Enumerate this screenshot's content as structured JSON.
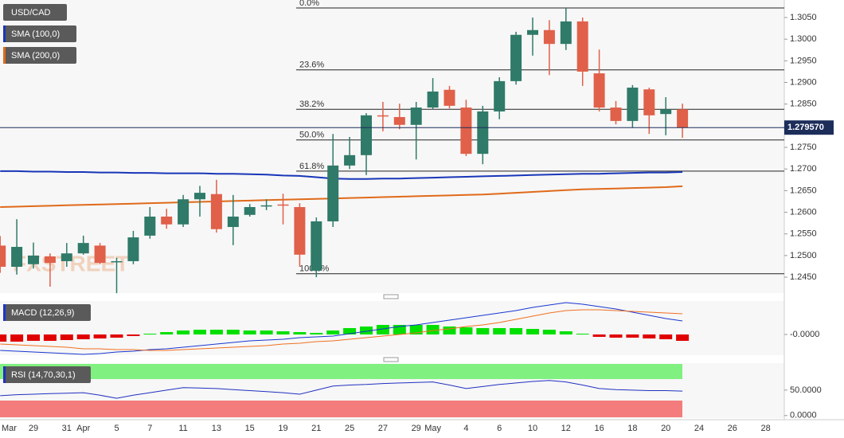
{
  "chart_data": [
    {
      "type": "candlestick",
      "title": "USD/CAD",
      "watermark": "FXSTREET",
      "categories": [
        "Mar",
        null,
        "29",
        null,
        "31",
        "Apr",
        null,
        "5",
        null,
        "7",
        null,
        "11",
        null,
        "13",
        null,
        "15",
        null,
        "19",
        null,
        "21",
        null,
        "25",
        null,
        "27",
        null,
        "29",
        "May",
        null,
        "4",
        null,
        "6",
        null,
        "10",
        null,
        "12",
        null,
        "16",
        null,
        "18",
        null,
        "20",
        null,
        "24",
        null,
        "26",
        null,
        "28"
      ],
      "candles": {
        "up_color": "#2f7a68",
        "down_color": "#e0604a",
        "open": [
          1.2523,
          1.2474,
          1.248,
          1.2498,
          1.2487,
          1.2505,
          1.2523,
          1.2486,
          1.2487,
          1.2546,
          1.259,
          1.2572,
          1.263,
          1.2642,
          1.2566,
          1.2594,
          1.2614,
          1.2618,
          1.2612,
          1.2465,
          1.2579,
          1.2708,
          1.2732,
          1.2824,
          1.282,
          1.2802,
          1.2842,
          1.2883,
          1.2842,
          1.2735,
          1.2833,
          1.2903,
          1.301,
          1.3021,
          1.2989,
          1.3041,
          1.2921,
          1.2842,
          1.2811,
          1.2884,
          1.2827,
          1.2838,
          null,
          null,
          null,
          null,
          null
        ],
        "high": [
          1.2545,
          1.2584,
          1.253,
          1.2505,
          1.2529,
          1.2546,
          1.2529,
          1.2495,
          1.2557,
          1.2612,
          1.2608,
          1.264,
          1.2661,
          1.2675,
          1.264,
          1.2619,
          1.263,
          1.2643,
          1.2621,
          1.2588,
          1.2781,
          1.2774,
          1.2829,
          1.2855,
          1.2851,
          1.2855,
          1.291,
          1.2892,
          1.286,
          1.2846,
          1.2912,
          1.3017,
          1.305,
          1.3044,
          1.3072,
          1.305,
          1.2976,
          1.2857,
          1.2894,
          1.2888,
          1.2866,
          1.2851,
          null,
          null,
          null,
          null,
          null
        ],
        "low": [
          1.246,
          1.2456,
          1.247,
          1.2428,
          1.2474,
          1.2502,
          1.248,
          1.2413,
          1.248,
          1.2539,
          1.2562,
          1.2566,
          1.259,
          1.2553,
          1.2524,
          1.259,
          1.2605,
          1.2572,
          1.2474,
          1.245,
          1.2566,
          1.27,
          1.2686,
          1.2787,
          1.2792,
          1.2722,
          1.2838,
          1.284,
          1.273,
          1.2711,
          1.2815,
          1.2895,
          1.2962,
          1.2917,
          1.2975,
          1.2892,
          1.2833,
          1.2803,
          1.2796,
          1.2781,
          1.2778,
          1.2772,
          null,
          null,
          null,
          null,
          null
        ],
        "close": [
          1.2474,
          1.252,
          1.25,
          1.2483,
          1.2505,
          1.2529,
          1.2483,
          1.2487,
          1.2542,
          1.259,
          1.2572,
          1.263,
          1.2645,
          1.2561,
          1.259,
          1.2612,
          1.2616,
          1.2616,
          1.2502,
          1.2579,
          1.2708,
          1.2732,
          1.2824,
          1.2822,
          1.2802,
          1.2842,
          1.2879,
          1.2846,
          1.2735,
          1.2833,
          1.2903,
          1.301,
          1.3021,
          1.2989,
          1.3041,
          1.2925,
          1.2842,
          1.2811,
          1.2888,
          1.2824,
          1.2838,
          1.27957,
          null,
          null,
          null,
          null,
          null
        ]
      },
      "series": [
        {
          "name": "SMA (100,0)",
          "color": "#1836b8",
          "values": [
            1.2695,
            1.2695,
            1.2694,
            1.2694,
            1.2693,
            1.2693,
            1.2692,
            1.2692,
            1.2691,
            1.2691,
            1.269,
            1.269,
            1.269,
            1.2689,
            1.2689,
            1.2688,
            1.2687,
            1.2685,
            1.2684,
            1.2681,
            1.2678,
            1.2677,
            1.2677,
            1.2678,
            1.2678,
            1.2679,
            1.268,
            1.2681,
            1.2682,
            1.2683,
            1.2684,
            1.2685,
            1.2686,
            1.2687,
            1.2688,
            1.2689,
            1.2689,
            1.269,
            1.2691,
            1.2692,
            1.2692,
            1.2693,
            null,
            null,
            null,
            null,
            null
          ]
        },
        {
          "name": "SMA (200,0)",
          "color": "#e06a1a",
          "values": [
            1.2612,
            1.2613,
            1.2614,
            1.2615,
            1.2616,
            1.2617,
            1.2618,
            1.2619,
            1.262,
            1.2621,
            1.2622,
            1.2623,
            1.2624,
            1.2625,
            1.2626,
            1.2627,
            1.2628,
            1.2629,
            1.263,
            1.2631,
            1.2632,
            1.2633,
            1.2634,
            1.2635,
            1.2636,
            1.2637,
            1.2638,
            1.2639,
            1.264,
            1.2641,
            1.2643,
            1.2645,
            1.2647,
            1.2649,
            1.2651,
            1.2653,
            1.2654,
            1.2655,
            1.2656,
            1.2657,
            1.2658,
            1.266,
            null,
            null,
            null,
            null,
            null
          ]
        }
      ],
      "levels": [
        {
          "label": "0.0%",
          "value": 1.3072
        },
        {
          "label": "23.6%",
          "value": 1.2929
        },
        {
          "label": "38.2%",
          "value": 1.2838
        },
        {
          "label": "50.0%",
          "value": 1.2767
        },
        {
          "label": "61.8%",
          "value": 1.2695
        },
        {
          "label": "100.0%",
          "value": 1.2458
        }
      ],
      "last_price": {
        "value": 1.27957,
        "label": "1.279570"
      },
      "ylim": [
        1.24133,
        1.30905
      ],
      "yticks": [
        {
          "value": 1.245,
          "label": "1.2450"
        },
        {
          "value": 1.25,
          "label": "1.2500"
        },
        {
          "value": 1.255,
          "label": "1.2550"
        },
        {
          "value": 1.26,
          "label": "1.2600"
        },
        {
          "value": 1.265,
          "label": "1.2650"
        },
        {
          "value": 1.27,
          "label": "1.2700"
        },
        {
          "value": 1.275,
          "label": "1.2750"
        },
        {
          "value": 1.28,
          "label": "1.2800"
        },
        {
          "value": 1.285,
          "label": "1.2850"
        },
        {
          "value": 1.29,
          "label": "1.2900"
        },
        {
          "value": 1.295,
          "label": "1.2950"
        },
        {
          "value": 1.3,
          "label": "1.3000"
        },
        {
          "value": 1.305,
          "label": "1.3050"
        }
      ]
    },
    {
      "type": "combo",
      "title": "MACD (12,26,9)",
      "series": [
        {
          "type": "bar",
          "up_color": "#00e000",
          "down_color": "#e00000",
          "values": [
            -0.0009,
            -0.0009,
            -0.0008,
            -0.0008,
            -0.0007,
            -0.0006,
            -0.0005,
            -0.0004,
            -0.0002,
            0.0001,
            0.0003,
            0.0005,
            0.0006,
            0.0006,
            0.0006,
            0.0005,
            0.0005,
            0.0004,
            0.0003,
            0.0002,
            0.0005,
            0.0008,
            0.001,
            0.0012,
            0.0012,
            0.0012,
            0.0012,
            0.001,
            0.0009,
            0.0008,
            0.0008,
            0.0008,
            0.0007,
            0.0006,
            0.0004,
            0.0001,
            -0.0003,
            -0.0004,
            -0.0004,
            -0.0005,
            -0.0006,
            -0.0008,
            null,
            null,
            null,
            null,
            null
          ]
        },
        {
          "type": "line",
          "color": "#1836d0",
          "values": [
            -0.002,
            -0.0021,
            -0.0022,
            -0.0023,
            -0.0024,
            -0.0025,
            -0.0024,
            -0.0022,
            -0.0021,
            -0.0019,
            -0.0018,
            -0.0016,
            -0.0014,
            -0.0012,
            -0.001,
            -0.0008,
            -0.0007,
            -0.0006,
            -0.0004,
            -0.0003,
            -0.0002,
            0.0001,
            0.0004,
            0.0007,
            0.001,
            0.0012,
            0.0015,
            0.0018,
            0.0021,
            0.0024,
            0.0027,
            0.003,
            0.0034,
            0.0037,
            0.004,
            0.0038,
            0.0035,
            0.0032,
            0.0028,
            0.0024,
            0.002,
            0.0017,
            null,
            null,
            null,
            null,
            null
          ]
        },
        {
          "type": "line",
          "color": "#f07020",
          "values": [
            -0.0012,
            -0.0013,
            -0.0014,
            -0.0015,
            -0.0016,
            -0.0018,
            -0.0018,
            -0.0019,
            -0.0019,
            -0.002,
            -0.002,
            -0.0019,
            -0.0018,
            -0.0017,
            -0.0016,
            -0.0015,
            -0.0014,
            -0.0012,
            -0.0011,
            -0.0009,
            -0.0008,
            -0.0006,
            -0.0004,
            -0.0002,
            0.0,
            0.0002,
            0.0005,
            0.0007,
            0.001,
            0.0012,
            0.0015,
            0.0019,
            0.0023,
            0.0027,
            0.003,
            0.0031,
            0.0031,
            0.003,
            0.0029,
            0.0028,
            0.0027,
            0.0026,
            null,
            null,
            null,
            null,
            null
          ]
        }
      ],
      "ylim": [
        -0.0026,
        0.0042
      ],
      "yticks": [
        {
          "value": 0,
          "label": "-0.0000"
        }
      ]
    },
    {
      "type": "line",
      "title": "RSI (14,70,30,1)",
      "series": [
        {
          "color": "#2030c0",
          "values": [
            39,
            41,
            42,
            43,
            44,
            45,
            40,
            34,
            40,
            45,
            50,
            55,
            54,
            53,
            51,
            49,
            47,
            45,
            42,
            50,
            58,
            60,
            61,
            63,
            64,
            65,
            66,
            60,
            53,
            57,
            61,
            64,
            67,
            69,
            66,
            60,
            53,
            51,
            50,
            49,
            49,
            48,
            null,
            null,
            null,
            null,
            null
          ]
        }
      ],
      "ylim": [
        -5,
        103
      ],
      "yticks": [
        {
          "value": 50,
          "label": "50.0000"
        },
        {
          "value": 0,
          "label": "0.0000"
        }
      ]
    }
  ]
}
